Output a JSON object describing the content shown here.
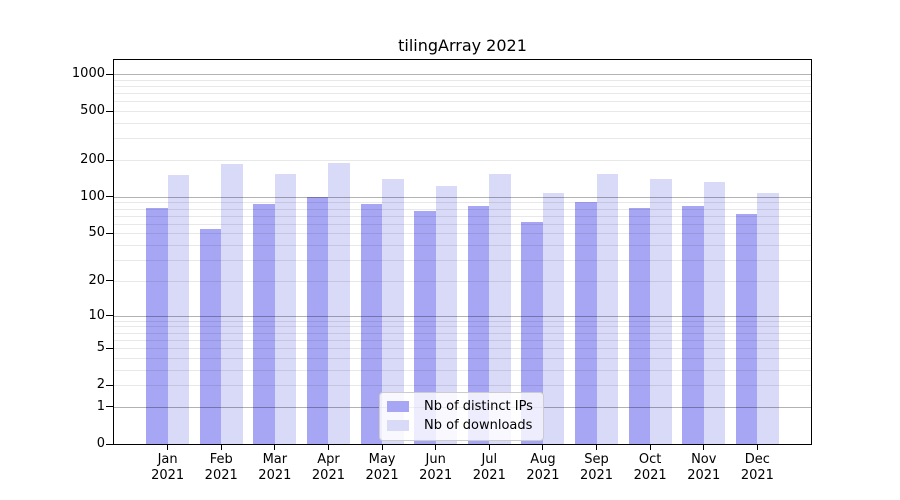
{
  "title": "tilingArray 2021",
  "chart_data": {
    "type": "bar",
    "title": "tilingArray 2021",
    "categories": [
      "Jan 2021",
      "Feb 2021",
      "Mar 2021",
      "Apr 2021",
      "May 2021",
      "Jun 2021",
      "Jul 2021",
      "Aug 2021",
      "Sep 2021",
      "Oct 2021",
      "Nov 2021",
      "Dec 2021"
    ],
    "series": [
      {
        "name": "Nb of distinct IPs",
        "color": "#a6a6f5",
        "values": [
          81,
          54,
          87,
          100,
          88,
          77,
          84,
          62,
          91,
          81,
          84,
          73
        ]
      },
      {
        "name": "Nb of downloads",
        "color": "#d9d9f8",
        "values": [
          151,
          187,
          153,
          190,
          140,
          123,
          153,
          108,
          153,
          140,
          132,
          108
        ]
      }
    ],
    "xlabel": "",
    "ylabel": "",
    "y_ticks": [
      0,
      1,
      2,
      5,
      10,
      20,
      50,
      100,
      200,
      500,
      1000
    ],
    "y_scale": "log10(value+1)",
    "ylim": [
      0,
      1300
    ],
    "xlim": [
      -1,
      12
    ],
    "bar_width_category_units": 0.4,
    "grid": {
      "major_values": [
        1,
        10,
        100,
        1000
      ],
      "minor_values": [
        2,
        3,
        4,
        5,
        6,
        7,
        8,
        9,
        20,
        30,
        40,
        50,
        60,
        70,
        80,
        90,
        200,
        300,
        400,
        500,
        600,
        700,
        800,
        900
      ],
      "major_color": "#b0b0b0",
      "minor_color": "#e8e8e8"
    },
    "legend": {
      "position": "lower-center"
    }
  }
}
